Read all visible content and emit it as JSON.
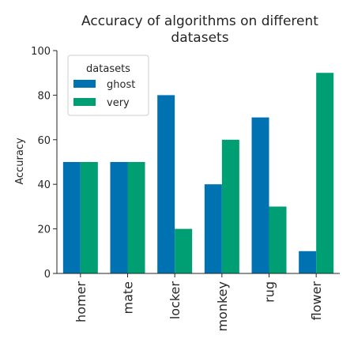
{
  "chart_data": {
    "type": "bar",
    "title": "Accuracy of algorithms on different datasets",
    "title_lines": [
      "Accuracy of algorithms on different",
      "datasets"
    ],
    "xlabel": "",
    "ylabel": "Accuracy",
    "ylim": [
      0,
      100
    ],
    "yticks": [
      0,
      20,
      40,
      60,
      80,
      100
    ],
    "categories": [
      "homer",
      "mate",
      "locker",
      "monkey",
      "rug",
      "flower"
    ],
    "series": [
      {
        "name": "ghost",
        "color": "#0072b2",
        "values": [
          50,
          50,
          80,
          40,
          70,
          10
        ]
      },
      {
        "name": "very",
        "color": "#009e73",
        "values": [
          50,
          50,
          20,
          60,
          30,
          90
        ]
      }
    ],
    "legend": {
      "title": "datasets",
      "placement": "top-left"
    },
    "grid": false
  }
}
